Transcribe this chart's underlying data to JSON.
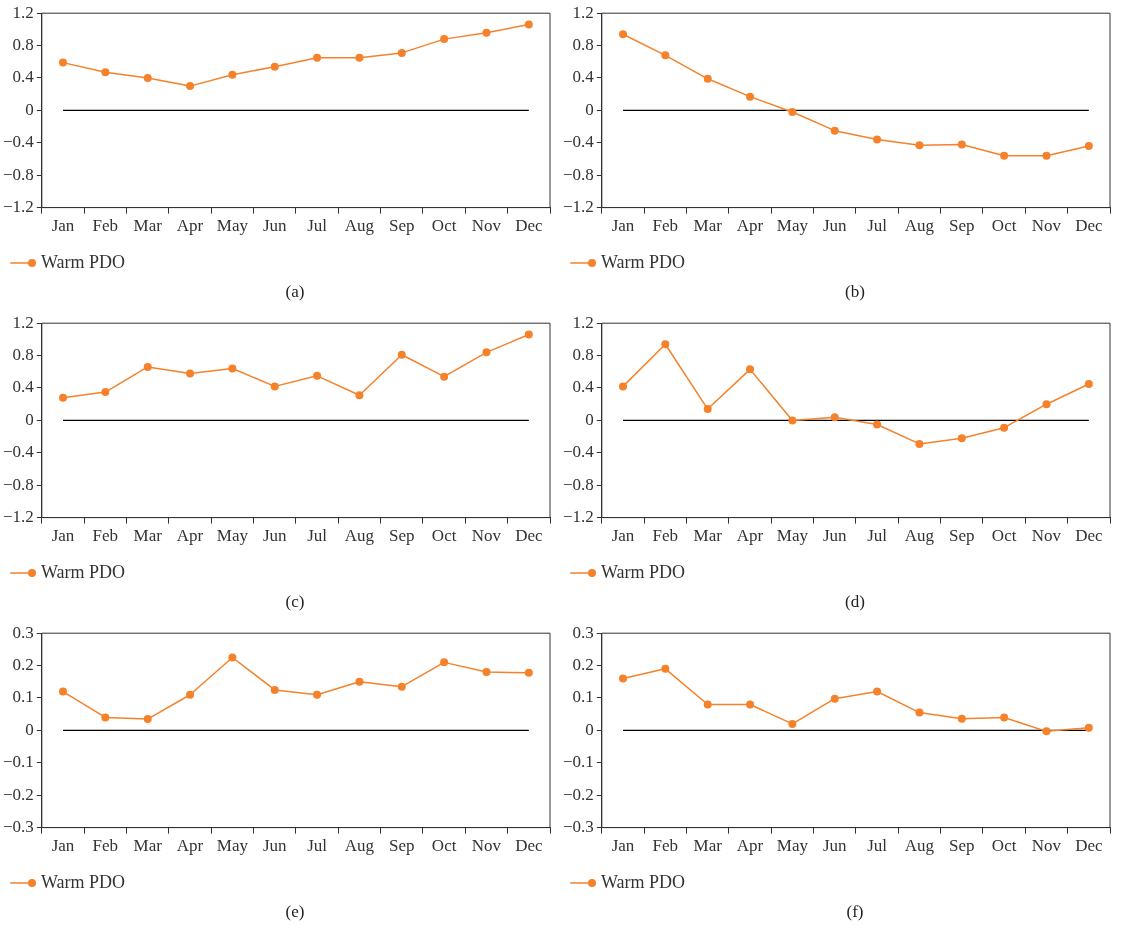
{
  "chart_data": [
    {
      "type": "line",
      "categories": [
        "Jan",
        "Feb",
        "Mar",
        "Apr",
        "May",
        "Jun",
        "Jul",
        "Aug",
        "Sep",
        "Oct",
        "Nov",
        "Dec"
      ],
      "series": [
        {
          "name": "Warm PDO",
          "color": "#f5822a",
          "values": [
            0.59,
            0.47,
            0.4,
            0.3,
            0.44,
            0.54,
            0.65,
            0.65,
            0.71,
            0.88,
            0.96,
            1.06
          ]
        }
      ],
      "ylim": [
        -1.2,
        1.2
      ],
      "yticks": [
        {
          "value": -1.2,
          "label": "−1.2"
        },
        {
          "value": -0.8,
          "label": "−0.8"
        },
        {
          "value": -0.4,
          "label": "−0.4"
        },
        0,
        0.4,
        0.8,
        1.2
      ],
      "ref_lines": [
        {
          "axis": "y",
          "value": 0,
          "color": "#000000"
        }
      ],
      "legend": "bottom left",
      "grid": false,
      "marker": "circle",
      "line_style": "solid",
      "annotations": [
        "(a)"
      ]
    },
    {
      "type": "line",
      "categories": [
        "Jan",
        "Feb",
        "Mar",
        "Apr",
        "May",
        "Jun",
        "Jul",
        "Aug",
        "Sep",
        "Oct",
        "Nov",
        "Dec"
      ],
      "series": [
        {
          "name": "Warm PDO",
          "color": "#f5822a",
          "values": [
            0.94,
            0.68,
            0.39,
            0.17,
            -0.02,
            -0.25,
            -0.36,
            -0.43,
            -0.42,
            -0.56,
            -0.56,
            -0.44
          ]
        }
      ],
      "ylim": [
        -1.2,
        1.2
      ],
      "yticks": [
        {
          "value": -1.2,
          "label": "−1.2"
        },
        {
          "value": -0.8,
          "label": "−0.8"
        },
        {
          "value": -0.4,
          "label": "−0.4"
        },
        0,
        0.4,
        0.8,
        1.2
      ],
      "ref_lines": [
        {
          "axis": "y",
          "value": 0,
          "color": "#000000"
        }
      ],
      "legend": "bottom left",
      "grid": false,
      "marker": "circle",
      "line_style": "solid",
      "annotations": [
        "(b)"
      ]
    },
    {
      "type": "line",
      "categories": [
        "Jan",
        "Feb",
        "Mar",
        "Apr",
        "May",
        "Jun",
        "Jul",
        "Aug",
        "Sep",
        "Oct",
        "Nov",
        "Dec"
      ],
      "series": [
        {
          "name": "Warm PDO",
          "color": "#f5822a",
          "values": [
            0.28,
            0.35,
            0.66,
            0.58,
            0.64,
            0.42,
            0.55,
            0.31,
            0.81,
            0.54,
            0.84,
            1.06
          ]
        }
      ],
      "ylim": [
        -1.2,
        1.2
      ],
      "yticks": [
        {
          "value": -1.2,
          "label": "−1.2"
        },
        {
          "value": -0.8,
          "label": "−0.8"
        },
        {
          "value": -0.4,
          "label": "−0.4"
        },
        0,
        0.4,
        0.8,
        1.2
      ],
      "ref_lines": [
        {
          "axis": "y",
          "value": 0,
          "color": "#000000"
        }
      ],
      "legend": "bottom left",
      "grid": false,
      "marker": "circle",
      "line_style": "solid",
      "annotations": [
        "(c)"
      ]
    },
    {
      "type": "line",
      "categories": [
        "Jan",
        "Feb",
        "Mar",
        "Apr",
        "May",
        "Jun",
        "Jul",
        "Aug",
        "Sep",
        "Oct",
        "Nov",
        "Dec"
      ],
      "series": [
        {
          "name": "Warm PDO",
          "color": "#f5822a",
          "values": [
            0.42,
            0.94,
            0.14,
            0.63,
            0.0,
            0.04,
            -0.05,
            -0.29,
            -0.22,
            -0.09,
            0.2,
            0.45
          ]
        }
      ],
      "ylim": [
        -1.2,
        1.2
      ],
      "yticks": [
        {
          "value": -1.2,
          "label": "−1.2"
        },
        {
          "value": -0.8,
          "label": "−0.8"
        },
        {
          "value": -0.4,
          "label": "−0.4"
        },
        0,
        0.4,
        0.8,
        1.2
      ],
      "ref_lines": [
        {
          "axis": "y",
          "value": 0,
          "color": "#000000"
        }
      ],
      "legend": "bottom left",
      "grid": false,
      "marker": "circle",
      "line_style": "solid",
      "annotations": [
        "(d)"
      ]
    },
    {
      "type": "line",
      "categories": [
        "Jan",
        "Feb",
        "Mar",
        "Apr",
        "May",
        "Jun",
        "Jul",
        "Aug",
        "Sep",
        "Oct",
        "Nov",
        "Dec"
      ],
      "series": [
        {
          "name": "Warm PDO",
          "color": "#f5822a",
          "values": [
            0.12,
            0.04,
            0.035,
            0.11,
            0.225,
            0.125,
            0.11,
            0.15,
            0.135,
            0.21,
            0.18,
            0.178
          ]
        }
      ],
      "ylim": [
        -0.3,
        0.3
      ],
      "yticks": [
        {
          "value": -0.3,
          "label": "−0.3"
        },
        {
          "value": -0.2,
          "label": "−0.2"
        },
        {
          "value": -0.1,
          "label": "−0.1"
        },
        0,
        0.1,
        0.2,
        0.3
      ],
      "ref_lines": [
        {
          "axis": "y",
          "value": 0,
          "color": "#000000"
        }
      ],
      "legend": "bottom left",
      "grid": false,
      "marker": "circle",
      "line_style": "solid",
      "annotations": [
        "(e)"
      ]
    },
    {
      "type": "line",
      "categories": [
        "Jan",
        "Feb",
        "Mar",
        "Apr",
        "May",
        "Jun",
        "Jul",
        "Aug",
        "Sep",
        "Oct",
        "Nov",
        "Dec"
      ],
      "series": [
        {
          "name": "Warm PDO",
          "color": "#f5822a",
          "values": [
            0.16,
            0.19,
            0.08,
            0.08,
            0.02,
            0.098,
            0.12,
            0.055,
            0.036,
            0.04,
            -0.003,
            0.008
          ]
        }
      ],
      "ylim": [
        -0.3,
        0.3
      ],
      "yticks": [
        {
          "value": -0.3,
          "label": "−0.3"
        },
        {
          "value": -0.2,
          "label": "−0.2"
        },
        {
          "value": -0.1,
          "label": "−0.1"
        },
        0,
        0.1,
        0.2,
        0.3
      ],
      "ref_lines": [
        {
          "axis": "y",
          "value": 0,
          "color": "#000000"
        }
      ],
      "legend": "bottom left",
      "grid": false,
      "marker": "circle",
      "line_style": "solid",
      "annotations": [
        "(f)"
      ]
    }
  ]
}
